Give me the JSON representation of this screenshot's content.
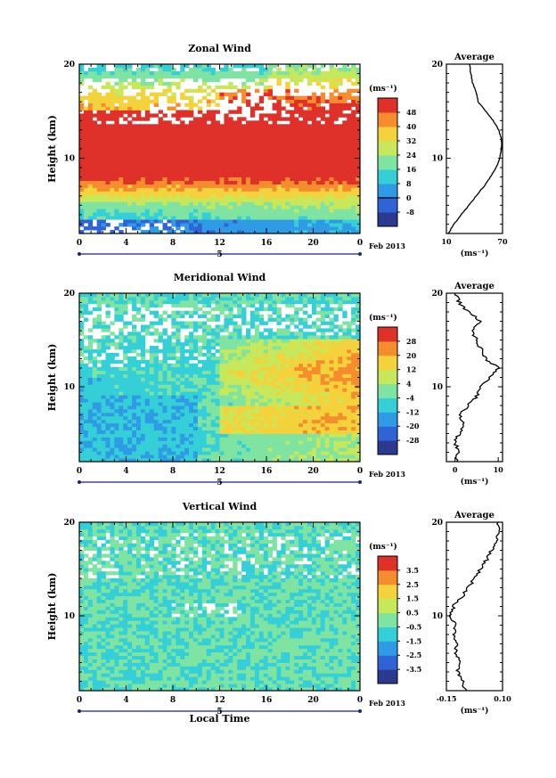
{
  "chart_data": [
    {
      "type": "heatmap",
      "title": "Zonal Wind",
      "ylabel": "Height (km)",
      "xlabel": "",
      "xlim": [
        0,
        24
      ],
      "ylim": [
        2,
        20
      ],
      "x_ticks": [
        "0",
        "4",
        "8",
        "12",
        "16",
        "20",
        "0"
      ],
      "y_ticks": [
        "10",
        "20"
      ],
      "date_marker": "5",
      "date_label": "Feb 2013",
      "colorbar": {
        "unit": "(ms⁻¹)",
        "levels": [
          -8,
          0,
          8,
          16,
          24,
          32,
          40,
          48
        ],
        "tick_labels": [
          "48",
          "40",
          "32",
          "24",
          "16",
          "8",
          "0",
          "-8"
        ]
      },
      "average_profile": {
        "title": "Average",
        "xlabel": "(ms⁻¹)",
        "x_ticks": [
          "10",
          "70"
        ],
        "xlim": [
          10,
          70
        ],
        "y_ticks": [
          "10",
          "20"
        ],
        "points": [
          [
            12,
            2
          ],
          [
            18,
            3
          ],
          [
            26,
            4
          ],
          [
            34,
            5
          ],
          [
            42,
            6
          ],
          [
            50,
            7
          ],
          [
            57,
            8
          ],
          [
            63,
            9
          ],
          [
            67,
            10
          ],
          [
            69,
            11
          ],
          [
            69,
            12
          ],
          [
            66,
            13
          ],
          [
            60,
            14
          ],
          [
            52,
            15
          ],
          [
            44,
            16
          ],
          [
            42,
            17
          ],
          [
            38,
            18
          ],
          [
            36,
            19
          ],
          [
            35,
            20
          ]
        ]
      },
      "field_description": "strong westerly core 8–14 km (>48), weaker winds above and below"
    },
    {
      "type": "heatmap",
      "title": "Meridional Wind",
      "ylabel": "Height (km)",
      "xlabel": "",
      "xlim": [
        0,
        24
      ],
      "ylim": [
        2,
        20
      ],
      "x_ticks": [
        "0",
        "4",
        "8",
        "12",
        "16",
        "20",
        "0"
      ],
      "y_ticks": [
        "10",
        "20"
      ],
      "date_marker": "5",
      "date_label": "Feb 2013",
      "colorbar": {
        "unit": "(ms⁻¹)",
        "levels": [
          -28,
          -20,
          -12,
          -4,
          4,
          12,
          20,
          28
        ],
        "tick_labels": [
          "28",
          "20",
          "12",
          "4",
          "-4",
          "-12",
          "-20",
          "-28"
        ]
      },
      "average_profile": {
        "title": "Average",
        "xlabel": "(ms⁻¹)",
        "x_ticks": [
          "0",
          "10"
        ],
        "xlim": [
          -2,
          11
        ],
        "y_ticks": [
          "10",
          "20"
        ],
        "points": [
          [
            0,
            2
          ],
          [
            1,
            3
          ],
          [
            0,
            4
          ],
          [
            1,
            5
          ],
          [
            2,
            6
          ],
          [
            1,
            7
          ],
          [
            3,
            8
          ],
          [
            5,
            9
          ],
          [
            6,
            10
          ],
          [
            8,
            11
          ],
          [
            10,
            12
          ],
          [
            7,
            13
          ],
          [
            6,
            14
          ],
          [
            5,
            15
          ],
          [
            4,
            16
          ],
          [
            6,
            17
          ],
          [
            3,
            18
          ],
          [
            1,
            19
          ],
          [
            0,
            20
          ]
        ]
      },
      "field_description": "negative values (blue) in lower levels before noon, positive (orange) 8–15 km in the afternoon"
    },
    {
      "type": "heatmap",
      "title": "Vertical Wind",
      "ylabel": "Height (km)",
      "xlabel": "Local Time",
      "xlim": [
        0,
        24
      ],
      "ylim": [
        2,
        20
      ],
      "x_ticks": [
        "0",
        "4",
        "8",
        "12",
        "16",
        "20",
        "0"
      ],
      "y_ticks": [
        "10",
        "20"
      ],
      "date_marker": "5",
      "date_label": "Feb 2013",
      "colorbar": {
        "unit": "(ms⁻¹)",
        "levels": [
          -3.5,
          -2.5,
          -1.5,
          -0.5,
          0.5,
          1.5,
          2.5,
          3.5
        ],
        "tick_labels": [
          "3.5",
          "2.5",
          "1.5",
          "0.5",
          "-0.5",
          "-1.5",
          "-2.5",
          "-3.5"
        ]
      },
      "average_profile": {
        "title": "Average",
        "xlabel": "(ms⁻¹)",
        "x_ticks": [
          "-0.15",
          "0.10"
        ],
        "xlim": [
          -0.15,
          0.1
        ],
        "y_ticks": [
          "10",
          "20"
        ],
        "points": [
          [
            -0.06,
            2
          ],
          [
            -0.08,
            3
          ],
          [
            -0.1,
            4
          ],
          [
            -0.09,
            5
          ],
          [
            -0.11,
            6
          ],
          [
            -0.1,
            7
          ],
          [
            -0.12,
            8
          ],
          [
            -0.11,
            9
          ],
          [
            -0.13,
            10
          ],
          [
            -0.12,
            11
          ],
          [
            -0.08,
            12
          ],
          [
            -0.06,
            13
          ],
          [
            -0.02,
            14
          ],
          [
            0.0,
            15
          ],
          [
            0.03,
            16
          ],
          [
            0.05,
            17
          ],
          [
            0.07,
            18
          ],
          [
            0.09,
            19
          ],
          [
            0.08,
            20
          ]
        ]
      },
      "field_description": "weak vertical motion, mostly between -0.5 and 0.5"
    }
  ],
  "colormap": [
    "#2b3a8f",
    "#2f63d6",
    "#2f9be6",
    "#35cfd8",
    "#7fe3a2",
    "#c7e85a",
    "#f3d23c",
    "#f58d2f",
    "#e0302a"
  ]
}
